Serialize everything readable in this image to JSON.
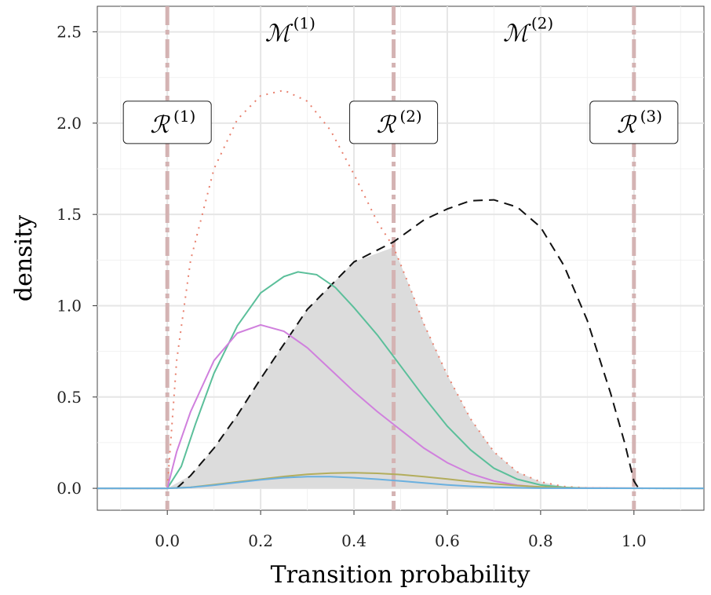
{
  "chart_data": {
    "type": "line",
    "xlabel": "Transition probability",
    "ylabel": "density",
    "xlim": [
      -0.15,
      1.15
    ],
    "ylim": [
      -0.12,
      2.64
    ],
    "x_ticks": [
      "0.0",
      "0.2",
      "0.4",
      "0.6",
      "0.8",
      "1.0"
    ],
    "y_ticks": [
      "0.0",
      "0.5",
      "1.0",
      "1.5",
      "2.0",
      "2.5"
    ],
    "grid": true,
    "vertical_lines": [
      0.0,
      0.485,
      1.0
    ],
    "region_labels": [
      {
        "symbol": "ℛ",
        "superscript": "(1)",
        "x": 0.0,
        "y": 2.0
      },
      {
        "symbol": "ℛ",
        "superscript": "(2)",
        "x": 0.485,
        "y": 2.0
      },
      {
        "symbol": "ℛ",
        "superscript": "(3)",
        "x": 1.0,
        "y": 2.0
      }
    ],
    "model_labels": [
      {
        "symbol": "ℳ",
        "superscript": "(1)",
        "x": 0.26,
        "y": 2.5
      },
      {
        "symbol": "ℳ",
        "superscript": "(2)",
        "x": 0.77,
        "y": 2.5
      }
    ],
    "series": [
      {
        "style": "dotted",
        "color": "#e8806e",
        "points": [
          [
            -0.15,
            0
          ],
          [
            0,
            0
          ],
          [
            0.02,
            0.7
          ],
          [
            0.05,
            1.25
          ],
          [
            0.1,
            1.75
          ],
          [
            0.15,
            2.02
          ],
          [
            0.2,
            2.15
          ],
          [
            0.25,
            2.18
          ],
          [
            0.3,
            2.12
          ],
          [
            0.35,
            1.96
          ],
          [
            0.4,
            1.72
          ],
          [
            0.45,
            1.46
          ],
          [
            0.485,
            1.32
          ],
          [
            0.52,
            1.1
          ],
          [
            0.55,
            0.9
          ],
          [
            0.6,
            0.62
          ],
          [
            0.65,
            0.38
          ],
          [
            0.7,
            0.2
          ],
          [
            0.75,
            0.09
          ],
          [
            0.8,
            0.035
          ],
          [
            0.85,
            0.01
          ],
          [
            0.9,
            0.002
          ],
          [
            1.0,
            0
          ],
          [
            1.15,
            0
          ]
        ]
      },
      {
        "style": "dashed",
        "color": "#111111",
        "points": [
          [
            0.02,
            0
          ],
          [
            0.05,
            0.07
          ],
          [
            0.1,
            0.22
          ],
          [
            0.15,
            0.4
          ],
          [
            0.2,
            0.6
          ],
          [
            0.3,
            0.98
          ],
          [
            0.4,
            1.24
          ],
          [
            0.485,
            1.35
          ],
          [
            0.55,
            1.47
          ],
          [
            0.6,
            1.53
          ],
          [
            0.65,
            1.575
          ],
          [
            0.7,
            1.58
          ],
          [
            0.75,
            1.54
          ],
          [
            0.8,
            1.43
          ],
          [
            0.85,
            1.22
          ],
          [
            0.9,
            0.92
          ],
          [
            0.95,
            0.52
          ],
          [
            0.98,
            0.25
          ],
          [
            1.0,
            0.04
          ],
          [
            1.01,
            0
          ]
        ]
      },
      {
        "style": "solid",
        "color": "#5bbf9a",
        "points": [
          [
            -0.15,
            0
          ],
          [
            0,
            0
          ],
          [
            0.03,
            0.12
          ],
          [
            0.06,
            0.35
          ],
          [
            0.1,
            0.63
          ],
          [
            0.15,
            0.89
          ],
          [
            0.2,
            1.07
          ],
          [
            0.25,
            1.16
          ],
          [
            0.28,
            1.185
          ],
          [
            0.32,
            1.17
          ],
          [
            0.36,
            1.1
          ],
          [
            0.4,
            0.99
          ],
          [
            0.45,
            0.84
          ],
          [
            0.5,
            0.67
          ],
          [
            0.55,
            0.5
          ],
          [
            0.6,
            0.34
          ],
          [
            0.65,
            0.21
          ],
          [
            0.7,
            0.11
          ],
          [
            0.75,
            0.05
          ],
          [
            0.8,
            0.018
          ],
          [
            0.85,
            0.005
          ],
          [
            0.9,
            0.001
          ],
          [
            1.15,
            0
          ]
        ]
      },
      {
        "style": "solid",
        "color": "#d080dd",
        "points": [
          [
            -0.15,
            0
          ],
          [
            0,
            0
          ],
          [
            0.02,
            0.2
          ],
          [
            0.05,
            0.42
          ],
          [
            0.1,
            0.7
          ],
          [
            0.15,
            0.85
          ],
          [
            0.2,
            0.895
          ],
          [
            0.25,
            0.86
          ],
          [
            0.3,
            0.77
          ],
          [
            0.35,
            0.65
          ],
          [
            0.4,
            0.53
          ],
          [
            0.45,
            0.42
          ],
          [
            0.5,
            0.32
          ],
          [
            0.55,
            0.22
          ],
          [
            0.6,
            0.14
          ],
          [
            0.65,
            0.08
          ],
          [
            0.7,
            0.04
          ],
          [
            0.75,
            0.017
          ],
          [
            0.8,
            0.006
          ],
          [
            0.85,
            0.002
          ],
          [
            1.15,
            0
          ]
        ]
      },
      {
        "style": "solid",
        "color": "#b3ad5c",
        "points": [
          [
            -0.15,
            0
          ],
          [
            0,
            0
          ],
          [
            0.05,
            0.006
          ],
          [
            0.1,
            0.02
          ],
          [
            0.15,
            0.035
          ],
          [
            0.2,
            0.05
          ],
          [
            0.25,
            0.065
          ],
          [
            0.3,
            0.077
          ],
          [
            0.35,
            0.083
          ],
          [
            0.4,
            0.085
          ],
          [
            0.45,
            0.082
          ],
          [
            0.5,
            0.075
          ],
          [
            0.55,
            0.064
          ],
          [
            0.6,
            0.051
          ],
          [
            0.65,
            0.037
          ],
          [
            0.7,
            0.025
          ],
          [
            0.75,
            0.015
          ],
          [
            0.8,
            0.008
          ],
          [
            0.85,
            0.003
          ],
          [
            0.9,
            0.001
          ],
          [
            1.15,
            0
          ]
        ]
      },
      {
        "style": "solid",
        "color": "#6ab0df",
        "points": [
          [
            -0.15,
            0
          ],
          [
            0,
            0
          ],
          [
            0.05,
            0.005
          ],
          [
            0.1,
            0.017
          ],
          [
            0.15,
            0.032
          ],
          [
            0.2,
            0.047
          ],
          [
            0.25,
            0.058
          ],
          [
            0.3,
            0.064
          ],
          [
            0.35,
            0.064
          ],
          [
            0.4,
            0.058
          ],
          [
            0.45,
            0.05
          ],
          [
            0.5,
            0.04
          ],
          [
            0.55,
            0.029
          ],
          [
            0.6,
            0.019
          ],
          [
            0.65,
            0.011
          ],
          [
            0.7,
            0.006
          ],
          [
            0.75,
            0.003
          ],
          [
            0.8,
            0.001
          ],
          [
            1.15,
            0
          ]
        ]
      }
    ],
    "shaded_region": {
      "color": "#dcdcdc",
      "lower": [
        [
          0,
          0
        ],
        [
          0.485,
          0
        ],
        [
          1.0,
          0
        ]
      ],
      "upper": [
        [
          0,
          0
        ],
        [
          0.05,
          0.07
        ],
        [
          0.1,
          0.22
        ],
        [
          0.15,
          0.4
        ],
        [
          0.2,
          0.6
        ],
        [
          0.3,
          0.98
        ],
        [
          0.4,
          1.24
        ],
        [
          0.485,
          1.32
        ],
        [
          0.52,
          1.1
        ],
        [
          0.55,
          0.9
        ],
        [
          0.6,
          0.62
        ],
        [
          0.65,
          0.38
        ],
        [
          0.7,
          0.2
        ],
        [
          0.75,
          0.09
        ],
        [
          0.8,
          0.035
        ],
        [
          0.85,
          0.01
        ],
        [
          0.9,
          0.002
        ],
        [
          1.0,
          0
        ]
      ]
    }
  }
}
